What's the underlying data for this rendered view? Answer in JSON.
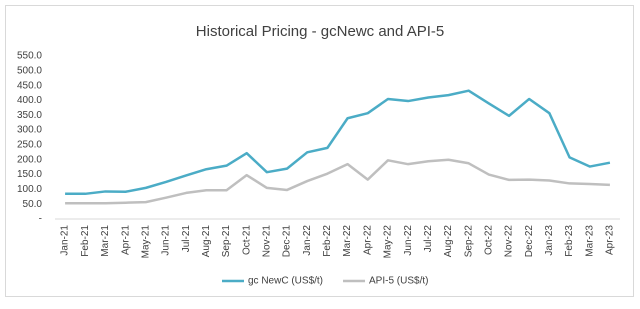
{
  "chart_data": {
    "type": "line",
    "title": "Historical Pricing - gcNewc and API-5",
    "categories": [
      "Jan-21",
      "Feb-21",
      "Mar-21",
      "Apr-21",
      "May-21",
      "Jun-21",
      "Jul-21",
      "Aug-21",
      "Sep-21",
      "Oct-21",
      "Nov-21",
      "Dec-21",
      "Jan-22",
      "Feb-22",
      "Mar-22",
      "Apr-22",
      "May-22",
      "Jun-22",
      "Jul-22",
      "Aug-22",
      "Sep-22",
      "Oct-22",
      "Nov-22",
      "Dec-22",
      "Jan-23",
      "Feb-23",
      "Mar-23",
      "Apr-23"
    ],
    "series": [
      {
        "name": "gc NewC (US$/t)",
        "color": "#4bacc6",
        "values": [
          85,
          85,
          93,
          92,
          105,
          125,
          147,
          168,
          180,
          222,
          158,
          170,
          225,
          240,
          340,
          357,
          405,
          398,
          410,
          418,
          433,
          390,
          348,
          405,
          357,
          208,
          177,
          190
        ]
      },
      {
        "name": "API-5 (US$/t)",
        "color": "#bfbfbf",
        "values": [
          53,
          53,
          53,
          55,
          57,
          72,
          88,
          97,
          97,
          148,
          105,
          98,
          128,
          153,
          185,
          133,
          198,
          185,
          195,
          200,
          188,
          150,
          132,
          133,
          130,
          120,
          118,
          115
        ]
      }
    ],
    "ylim": [
      0,
      550
    ],
    "yticks": [
      {
        "value": 0,
        "label": "-"
      },
      {
        "value": 50,
        "label": "50.0"
      },
      {
        "value": 100,
        "label": "100.0"
      },
      {
        "value": 150,
        "label": "150.0"
      },
      {
        "value": 200,
        "label": "200.0"
      },
      {
        "value": 250,
        "label": "250.0"
      },
      {
        "value": 300,
        "label": "300.0"
      },
      {
        "value": 350,
        "label": "350.0"
      },
      {
        "value": 400,
        "label": "400.0"
      },
      {
        "value": 450,
        "label": "450.0"
      },
      {
        "value": 500,
        "label": "500.0"
      },
      {
        "value": 550,
        "label": "550.0"
      }
    ],
    "grid": false,
    "legend": "bottom"
  }
}
